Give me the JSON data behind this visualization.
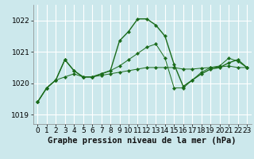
{
  "bg_color": "#cce8ec",
  "grid_color": "#ffffff",
  "line_color": "#1a6b1a",
  "marker_color": "#1a6b1a",
  "xlabel": "Graphe pression niveau de la mer (hPa)",
  "xlabel_fontsize": 7.5,
  "tick_fontsize": 6.5,
  "ylim": [
    1018.7,
    1022.5
  ],
  "yticks": [
    1019,
    1020,
    1021,
    1022
  ],
  "xlim": [
    -0.5,
    23.5
  ],
  "xticks": [
    0,
    1,
    2,
    3,
    4,
    5,
    6,
    7,
    8,
    9,
    10,
    11,
    12,
    13,
    14,
    15,
    16,
    17,
    18,
    19,
    20,
    21,
    22,
    23
  ],
  "series": [
    [
      1019.4,
      1019.85,
      1020.1,
      1020.75,
      1020.4,
      1020.2,
      1020.2,
      1020.3,
      1020.4,
      1021.35,
      1021.65,
      1022.05,
      1022.05,
      1021.85,
      1021.5,
      1020.6,
      1019.9,
      1020.1,
      1020.3,
      1020.45,
      1020.5,
      1020.65,
      1020.75,
      1020.5
    ],
    [
      1019.4,
      1019.85,
      1020.1,
      1020.2,
      1020.3,
      1020.2,
      1020.2,
      1020.25,
      1020.3,
      1020.35,
      1020.4,
      1020.45,
      1020.5,
      1020.5,
      1020.5,
      1020.5,
      1020.45,
      1020.45,
      1020.48,
      1020.5,
      1020.52,
      1020.55,
      1020.5,
      1020.5
    ],
    [
      1019.4,
      1019.85,
      1020.1,
      1020.75,
      1020.4,
      1020.2,
      1020.2,
      1020.3,
      1020.4,
      1020.55,
      1020.75,
      1020.95,
      1021.15,
      1021.25,
      1020.8,
      1019.85,
      1019.85,
      1020.1,
      1020.35,
      1020.5,
      1020.55,
      1020.8,
      1020.7,
      1020.5
    ]
  ]
}
